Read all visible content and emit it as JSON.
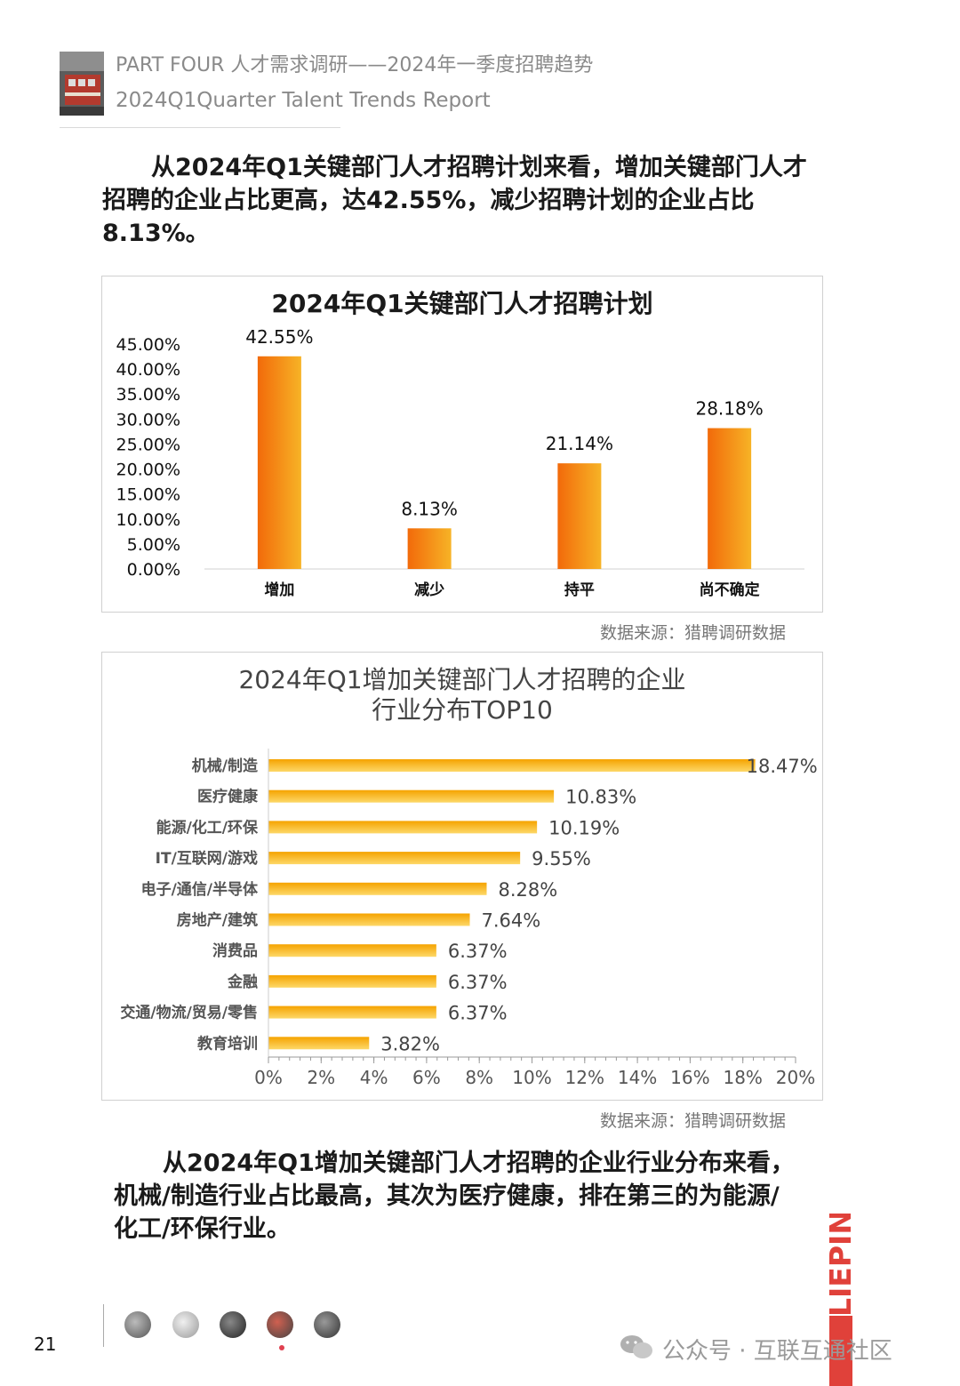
{
  "header": {
    "line1": "PART FOUR 人才需求调研——2024年一季度招聘趋势",
    "line2": "2024Q1Quarter Talent Trends Report"
  },
  "intro_text": "从2024年Q1关键部门人才招聘计划来看，增加关键部门人才招聘的企业占比更高，达42.55%，减少招聘计划的企业占比8.13%。",
  "chart_data": [
    {
      "type": "bar",
      "title": "2024年Q1关键部门人才招聘计划",
      "categories": [
        "增加",
        "减少",
        "持平",
        "尚不确定"
      ],
      "values": [
        42.55,
        8.13,
        21.14,
        28.18
      ],
      "data_labels": [
        "42.55%",
        "8.13%",
        "21.14%",
        "28.18%"
      ],
      "ylim": [
        0,
        45
      ],
      "yticks": [
        "0.00%",
        "5.00%",
        "10.00%",
        "15.00%",
        "20.00%",
        "25.00%",
        "30.00%",
        "35.00%",
        "40.00%",
        "45.00%"
      ],
      "colors": [
        "#f07a10",
        "#f5a020"
      ]
    },
    {
      "type": "bar",
      "orientation": "horizontal",
      "title": "2024年Q1增加关键部门人才招聘的企业行业分布TOP10",
      "title_lines": [
        "2024年Q1增加关键部门人才招聘的企业",
        "行业分布TOP10"
      ],
      "categories": [
        "机械/制造",
        "医疗健康",
        "能源/化工/环保",
        "IT/互联网/游戏",
        "电子/通信/半导体",
        "房地产/建筑",
        "消费品",
        "金融",
        "交通/物流/贸易/零售",
        "教育培训"
      ],
      "values": [
        18.47,
        10.83,
        10.19,
        9.55,
        8.28,
        7.64,
        6.37,
        6.37,
        6.37,
        3.82
      ],
      "data_labels": [
        "18.47%",
        "10.83%",
        "10.19%",
        "9.55%",
        "8.28%",
        "7.64%",
        "6.37%",
        "6.37%",
        "6.37%",
        "3.82%"
      ],
      "xlim": [
        0,
        20
      ],
      "xticks": [
        "0%",
        "2%",
        "4%",
        "6%",
        "8%",
        "10%",
        "12%",
        "14%",
        "16%",
        "18%",
        "20%"
      ],
      "colors": [
        "#f5a800",
        "#fcd060"
      ]
    }
  ],
  "source_1": "数据来源：猎聘调研数据",
  "source_2": "数据来源：猎聘调研数据",
  "conclusion_text": "从2024年Q1增加关键部门人才招聘的企业行业分布来看，机械/制造行业占比最高，其次为医疗健康，排在第三的为能源/化工/环保行业。",
  "footer": {
    "page_number": "21",
    "brand": "LIEPIN",
    "watermark": "公众号 · 互联互通社区"
  }
}
